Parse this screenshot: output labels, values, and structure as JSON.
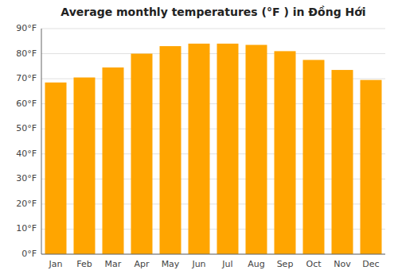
{
  "chart_data": {
    "type": "bar",
    "title": "Average monthly temperatures (°F ) in Đồng Hới",
    "categories": [
      "Jan",
      "Feb",
      "Mar",
      "Apr",
      "May",
      "Jun",
      "Jul",
      "Aug",
      "Sep",
      "Oct",
      "Nov",
      "Dec"
    ],
    "values": [
      68.5,
      70.5,
      74.5,
      80.0,
      83.0,
      84.0,
      84.0,
      83.5,
      81.0,
      77.5,
      73.5,
      69.5
    ],
    "color": "#FFA500",
    "ylim": [
      0,
      90
    ],
    "yticks": [
      {
        "value": 0,
        "label": "0°F"
      },
      {
        "value": 10,
        "label": "10°F"
      },
      {
        "value": 20,
        "label": "20°F"
      },
      {
        "value": 30,
        "label": "30°F"
      },
      {
        "value": 40,
        "label": "40°F"
      },
      {
        "value": 50,
        "label": "50°F"
      },
      {
        "value": 60,
        "label": "60°F"
      },
      {
        "value": 70,
        "label": "70°F"
      },
      {
        "value": 80,
        "label": "80°F"
      },
      {
        "value": 90,
        "label": "90°F"
      }
    ],
    "grid": true
  }
}
